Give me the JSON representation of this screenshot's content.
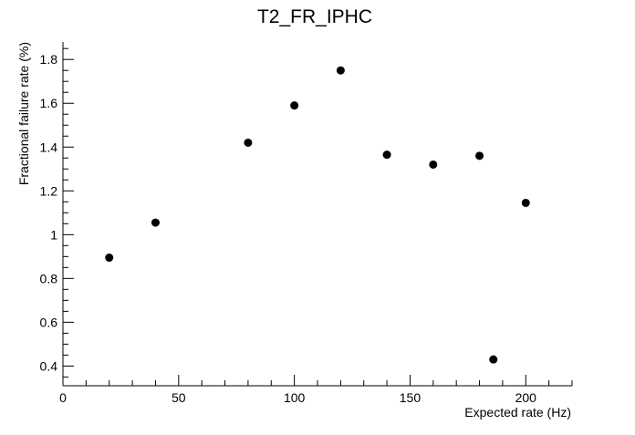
{
  "chart_data": {
    "type": "scatter",
    "title": "T2_FR_IPHC",
    "xlabel": "Expected rate (Hz)",
    "ylabel": "Fractional failure rate (%)",
    "xlim": [
      0,
      220
    ],
    "ylim": [
      0.31,
      1.88
    ],
    "x_ticks": [
      0,
      50,
      100,
      150,
      200
    ],
    "y_ticks": [
      0.4,
      0.6,
      0.8,
      1,
      1.2,
      1.4,
      1.6,
      1.8
    ],
    "x_tick_labels": [
      "0",
      "50",
      "100",
      "150",
      "200"
    ],
    "y_tick_labels": [
      "0.4",
      "0.6",
      "0.8",
      "1",
      "1.2",
      "1.4",
      "1.6",
      "1.8"
    ],
    "grid": false,
    "legend": "none",
    "marker_color": "#000000",
    "series": [
      {
        "points": [
          {
            "x": 20,
            "y": 0.895
          },
          {
            "x": 40,
            "y": 1.055
          },
          {
            "x": 80,
            "y": 1.42
          },
          {
            "x": 100,
            "y": 1.59
          },
          {
            "x": 120,
            "y": 1.75
          },
          {
            "x": 140,
            "y": 1.365
          },
          {
            "x": 160,
            "y": 1.32
          },
          {
            "x": 180,
            "y": 1.36
          },
          {
            "x": 186,
            "y": 0.43
          },
          {
            "x": 200,
            "y": 1.145
          }
        ]
      }
    ]
  }
}
